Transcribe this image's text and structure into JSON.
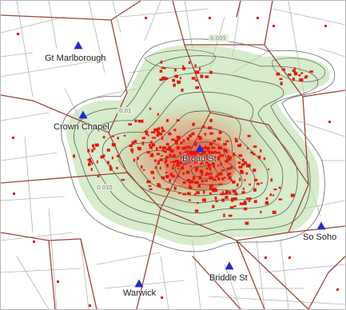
{
  "map": {
    "colors": {
      "background": "#ffffff",
      "minor_street": "#b4b4b4",
      "major_road": "#a0423c",
      "density_fill": "#b5dca0",
      "density_core": "#e0553a",
      "contour": "#333333",
      "death_dot": "#e8140a",
      "pump_marker": "#1f2bd6"
    },
    "contour_labels": [
      "0.005",
      "0.01",
      "0.015"
    ],
    "pumps": [
      {
        "name": "Gt Marlborough",
        "icon": "pump-triangle-icon"
      },
      {
        "name": "Crown Chapel",
        "icon": "pump-triangle-icon"
      },
      {
        "name": "Broad St",
        "icon": "pump-triangle-icon"
      },
      {
        "name": "So Soho",
        "icon": "pump-triangle-icon"
      },
      {
        "name": "Briddle St",
        "icon": "pump-triangle-icon"
      },
      {
        "name": "Warwick",
        "icon": "pump-triangle-icon"
      }
    ]
  }
}
